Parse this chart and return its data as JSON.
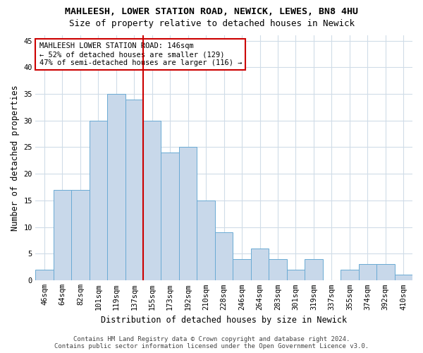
{
  "title": "MAHLEESH, LOWER STATION ROAD, NEWICK, LEWES, BN8 4HU",
  "subtitle": "Size of property relative to detached houses in Newick",
  "xlabel": "Distribution of detached houses by size in Newick",
  "ylabel": "Number of detached properties",
  "bar_values": [
    2,
    17,
    17,
    30,
    35,
    34,
    30,
    24,
    25,
    15,
    9,
    4,
    6,
    4,
    2,
    4,
    0,
    2,
    3,
    3,
    1
  ],
  "categories": [
    "46sqm",
    "64sqm",
    "82sqm",
    "101sqm",
    "119sqm",
    "137sqm",
    "155sqm",
    "173sqm",
    "192sqm",
    "210sqm",
    "228sqm",
    "246sqm",
    "264sqm",
    "283sqm",
    "301sqm",
    "319sqm",
    "337sqm",
    "355sqm",
    "374sqm",
    "392sqm",
    "410sqm"
  ],
  "bar_color": "#c8d8ea",
  "bar_edgecolor": "#6aaad4",
  "vline_x": 5.5,
  "vline_color": "#cc0000",
  "annotation_text": "MAHLEESH LOWER STATION ROAD: 146sqm\n← 52% of detached houses are smaller (129)\n47% of semi-detached houses are larger (116) →",
  "annotation_box_edgecolor": "#cc0000",
  "annotation_box_facecolor": "white",
  "footer_line1": "Contains HM Land Registry data © Crown copyright and database right 2024.",
  "footer_line2": "Contains public sector information licensed under the Open Government Licence v3.0.",
  "ylim": [
    0,
    46
  ],
  "yticks": [
    0,
    5,
    10,
    15,
    20,
    25,
    30,
    35,
    40,
    45
  ],
  "background_color": "#ffffff",
  "grid_color": "#d0dce8",
  "title_fontsize": 9.5,
  "subtitle_fontsize": 9,
  "axis_label_fontsize": 8.5,
  "tick_fontsize": 7.5,
  "annotation_fontsize": 7.5,
  "footer_fontsize": 6.5
}
